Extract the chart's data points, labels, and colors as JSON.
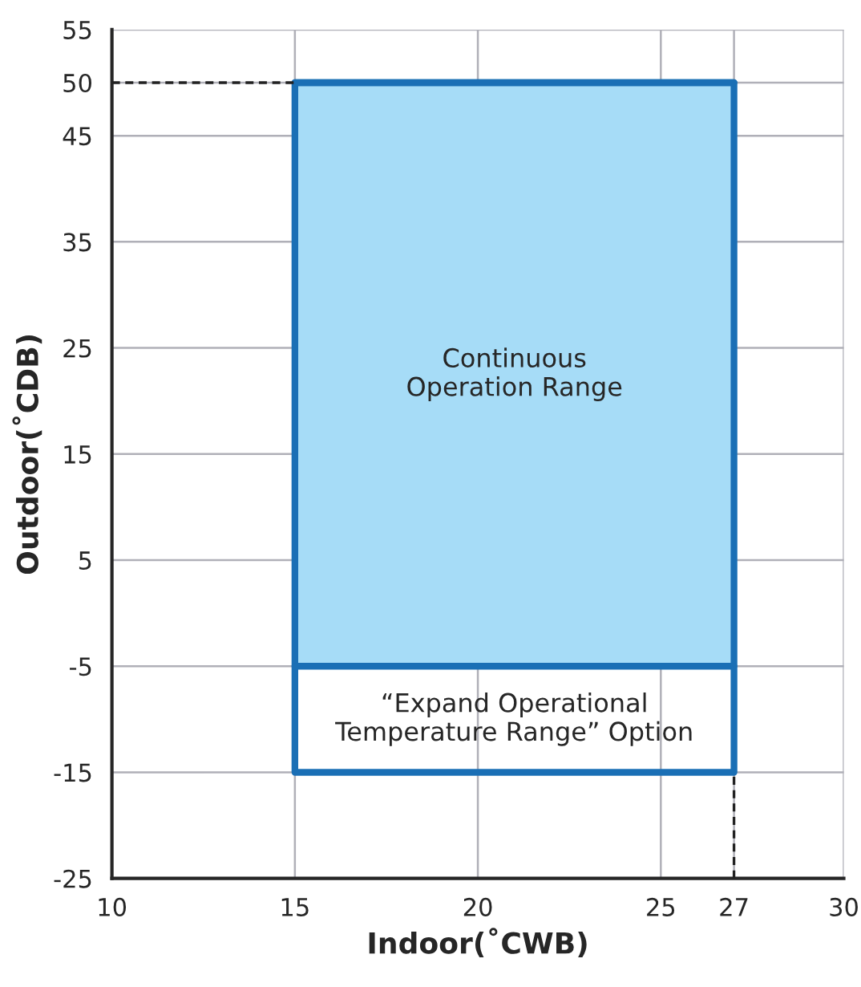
{
  "chart_data": {
    "type": "line",
    "color": "#a6dcf7",
    "xlabel": "Indoor(˚CWB)",
    "ylabel": "Outdoor(˚CDB)",
    "xlim": [
      10,
      30
    ],
    "ylim": [
      -25,
      55
    ],
    "xticks": [
      10,
      15,
      20,
      25,
      27,
      30
    ],
    "yticks": [
      -25,
      -15,
      -5,
      5,
      15,
      25,
      35,
      45,
      50,
      55
    ],
    "grid": true,
    "series": [
      {
        "color": "#1a6fb5",
        "x": [
          15,
          27
        ],
        "values": [
          50,
          50
        ],
        "lower": [
          -5,
          -5
        ],
        "upper": [
          50,
          50
        ]
      },
      {
        "color": "#1a6fb5",
        "x": [
          15,
          15,
          27,
          27
        ],
        "values": [
          -5,
          -15,
          -15,
          -5
        ]
      },
      {
        "type": "line",
        "color": "#222222",
        "line_style": "dashed",
        "x": [
          10,
          15
        ],
        "values": [
          50,
          50
        ]
      },
      {
        "type": "line",
        "color": "#222222",
        "line_style": "dashed",
        "x": [
          27,
          27
        ],
        "values": [
          -25,
          -15
        ]
      }
    ],
    "annotations": [
      "Continuous\nOperation Range",
      "“Expand Operational\nTemperature Range” Option"
    ]
  }
}
